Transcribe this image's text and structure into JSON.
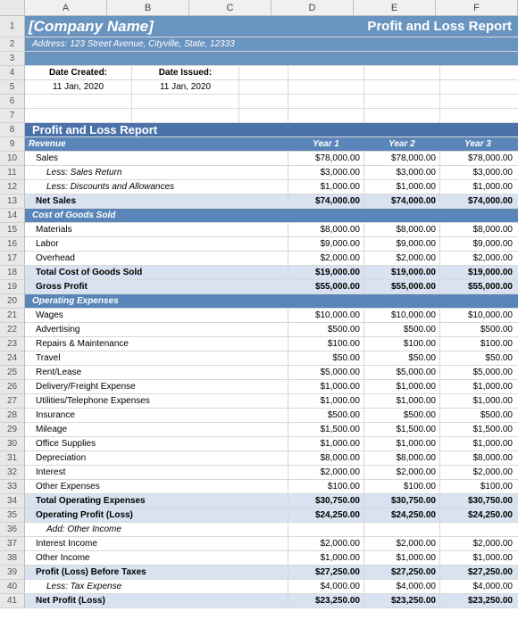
{
  "columns": [
    "A",
    "B",
    "C",
    "D",
    "E",
    "F"
  ],
  "header": {
    "company": "[Company Name]",
    "report_title": "Profit and Loss Report",
    "address": "Address: 123 Street Avenue, Cityville, State, 12333",
    "date_created_lbl": "Date Created:",
    "date_created_val": "11 Jan, 2020",
    "date_issued_lbl": "Date Issued:",
    "date_issued_val": "11 Jan, 2020"
  },
  "section_title": "Profit and Loss Report",
  "col_headers": {
    "label": "Revenue",
    "y1": "Year 1",
    "y2": "Year 2",
    "y3": "Year 3"
  },
  "rows": {
    "sales": {
      "label": "Sales",
      "v": [
        "$78,000.00",
        "$78,000.00",
        "$78,000.00"
      ]
    },
    "sales_return": {
      "label": "Less: Sales Return",
      "v": [
        "$3,000.00",
        "$3,000.00",
        "$3,000.00"
      ]
    },
    "discounts": {
      "label": "Less: Discounts and Allowances",
      "v": [
        "$1,000.00",
        "$1,000.00",
        "$1,000.00"
      ]
    },
    "net_sales": {
      "label": "Net Sales",
      "v": [
        "$74,000.00",
        "$74,000.00",
        "$74,000.00"
      ]
    },
    "cogs_hdr": {
      "label": "Cost of Goods Sold"
    },
    "materials": {
      "label": "Materials",
      "v": [
        "$8,000.00",
        "$8,000.00",
        "$8,000.00"
      ]
    },
    "labor": {
      "label": "Labor",
      "v": [
        "$9,000.00",
        "$9,000.00",
        "$9,000.00"
      ]
    },
    "overhead": {
      "label": "Overhead",
      "v": [
        "$2,000.00",
        "$2,000.00",
        "$2,000.00"
      ]
    },
    "total_cogs": {
      "label": "Total Cost of Goods Sold",
      "v": [
        "$19,000.00",
        "$19,000.00",
        "$19,000.00"
      ]
    },
    "gross_profit": {
      "label": "Gross Profit",
      "v": [
        "$55,000.00",
        "$55,000.00",
        "$55,000.00"
      ]
    },
    "opex_hdr": {
      "label": "Operating Expenses"
    },
    "wages": {
      "label": "Wages",
      "v": [
        "$10,000.00",
        "$10,000.00",
        "$10,000.00"
      ]
    },
    "advertising": {
      "label": "Advertising",
      "v": [
        "$500.00",
        "$500.00",
        "$500.00"
      ]
    },
    "repairs": {
      "label": "Repairs & Maintenance",
      "v": [
        "$100.00",
        "$100.00",
        "$100.00"
      ]
    },
    "travel": {
      "label": "Travel",
      "v": [
        "$50.00",
        "$50.00",
        "$50.00"
      ]
    },
    "rent": {
      "label": "Rent/Lease",
      "v": [
        "$5,000.00",
        "$5,000.00",
        "$5,000.00"
      ]
    },
    "delivery": {
      "label": "Delivery/Freight Expense",
      "v": [
        "$1,000.00",
        "$1,000.00",
        "$1,000.00"
      ]
    },
    "utilities": {
      "label": "Utilities/Telephone Expenses",
      "v": [
        "$1,000.00",
        "$1,000.00",
        "$1,000.00"
      ]
    },
    "insurance": {
      "label": "Insurance",
      "v": [
        "$500.00",
        "$500.00",
        "$500.00"
      ]
    },
    "mileage": {
      "label": "Mileage",
      "v": [
        "$1,500.00",
        "$1,500.00",
        "$1,500.00"
      ]
    },
    "office": {
      "label": "Office Supplies",
      "v": [
        "$1,000.00",
        "$1,000.00",
        "$1,000.00"
      ]
    },
    "depreciation": {
      "label": "Depreciation",
      "v": [
        "$8,000.00",
        "$8,000.00",
        "$8,000.00"
      ]
    },
    "interest": {
      "label": "Interest",
      "v": [
        "$2,000.00",
        "$2,000.00",
        "$2,000.00"
      ]
    },
    "other_exp": {
      "label": "Other Expenses",
      "v": [
        "$100.00",
        "$100.00",
        "$100.00"
      ]
    },
    "total_opex": {
      "label": "Total Operating Expenses",
      "v": [
        "$30,750.00",
        "$30,750.00",
        "$30,750.00"
      ]
    },
    "op_profit": {
      "label": "Operating Profit (Loss)",
      "v": [
        "$24,250.00",
        "$24,250.00",
        "$24,250.00"
      ]
    },
    "add_other": {
      "label": "Add: Other Income"
    },
    "int_income": {
      "label": "Interest Income",
      "v": [
        "$2,000.00",
        "$2,000.00",
        "$2,000.00"
      ]
    },
    "other_income": {
      "label": "Other Income",
      "v": [
        "$1,000.00",
        "$1,000.00",
        "$1,000.00"
      ]
    },
    "profit_before_tax": {
      "label": "Profit (Loss) Before Taxes",
      "v": [
        "$27,250.00",
        "$27,250.00",
        "$27,250.00"
      ]
    },
    "tax": {
      "label": "Less: Tax Expense",
      "v": [
        "$4,000.00",
        "$4,000.00",
        "$4,000.00"
      ]
    },
    "net_profit": {
      "label": "Net Profit (Loss)",
      "v": [
        "$23,250.00",
        "$23,250.00",
        "$23,250.00"
      ]
    }
  }
}
